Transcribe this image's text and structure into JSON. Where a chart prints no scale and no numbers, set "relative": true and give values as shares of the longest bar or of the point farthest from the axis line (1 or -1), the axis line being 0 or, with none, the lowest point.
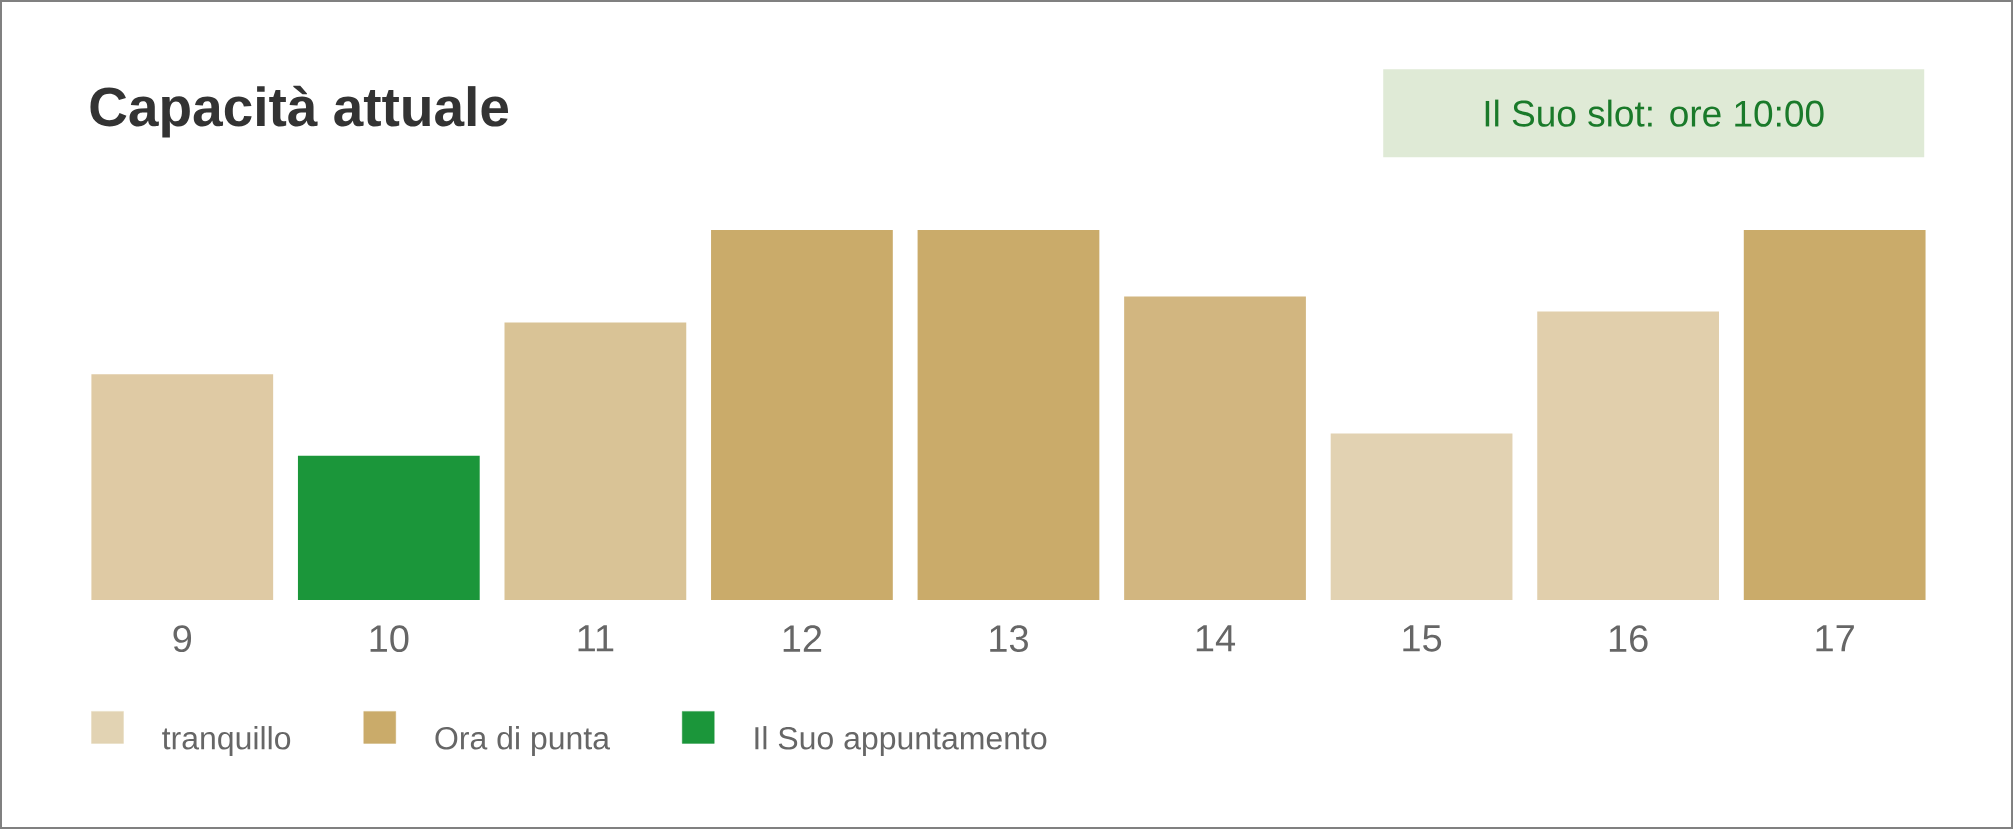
{
  "chart_data": {
    "type": "bar",
    "title": "Capacità attuale",
    "annotations": [
      "Il Suo slot: ore 10:00"
    ],
    "categories": [
      "9",
      "10",
      "11",
      "12",
      "13",
      "14",
      "15",
      "16",
      "17"
    ],
    "relative": true,
    "series": [
      {
        "name": "tranquillo",
        "color": "#e2d3b3",
        "values": [
          0.61,
          null,
          0.75,
          null,
          null,
          null,
          0.45,
          0.78,
          null
        ],
        "colors": [
          "#dfcaa4",
          null,
          "#d9c396",
          null,
          null,
          null,
          "#e2d2b2",
          "#e1cfac",
          null
        ]
      },
      {
        "name": "Ora di punta",
        "color": "#caab6a",
        "values": [
          null,
          null,
          null,
          1,
          1,
          0.82,
          null,
          null,
          1
        ],
        "colors": [
          null,
          null,
          null,
          "#caab6a",
          "#caab6a",
          "#d2b680",
          null,
          null,
          "#caab6a"
        ]
      },
      {
        "name": "Il Suo appuntamento",
        "color": "#1b963a",
        "values": [
          null,
          0.39,
          null,
          null,
          null,
          null,
          null,
          null,
          null
        ],
        "colors": [
          null,
          "#1b963a",
          null,
          null,
          null,
          null,
          null,
          null,
          null
        ]
      }
    ],
    "legend": "bottom left"
  }
}
